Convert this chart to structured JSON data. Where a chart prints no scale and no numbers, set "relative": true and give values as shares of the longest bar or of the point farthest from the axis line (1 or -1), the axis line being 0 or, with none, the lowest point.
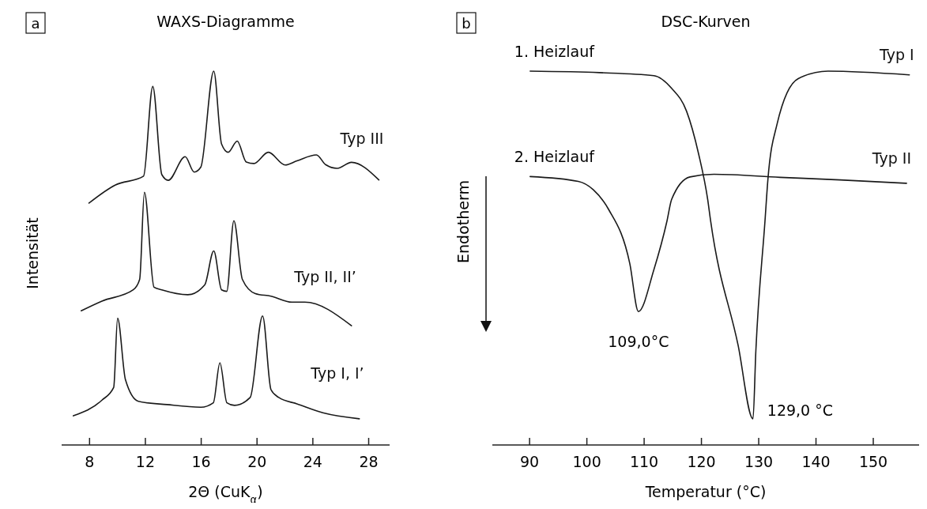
{
  "chart_data": [
    {
      "type": "line",
      "title": "WAXS-Diagramme",
      "xlabel": "2Θ (CuK$_{α}$)",
      "ylabel": "Intensität",
      "relative": true,
      "xlim": [
        6,
        29.5
      ],
      "xticks": [
        8,
        12,
        16,
        20,
        24,
        28
      ],
      "annotations": [
        "a"
      ],
      "series": [
        {
          "name": "Typ III",
          "color": "#1a1a1a",
          "x": [
            7.96,
            9.83,
            11.87,
            12.53,
            13.18,
            13.64,
            14.85,
            15.5,
            15.97,
            16.9,
            17.46,
            17.93,
            18.58,
            19.23,
            19.78,
            20.81,
            22.02,
            22.86,
            24.26,
            24.91,
            25.75,
            26.77,
            28.73
          ],
          "values": [
            0.647,
            0.695,
            0.719,
            0.959,
            0.723,
            0.708,
            0.771,
            0.73,
            0.743,
            1.0,
            0.805,
            0.783,
            0.813,
            0.757,
            0.753,
            0.783,
            0.749,
            0.76,
            0.776,
            0.75,
            0.74,
            0.756,
            0.709
          ]
        },
        {
          "name": "Typ II, II’",
          "color": "#1a1a1a",
          "x": [
            7.4,
            8.89,
            11.13,
            11.59,
            11.93,
            12.62,
            13.18,
            15.04,
            16.25,
            16.9,
            17.46,
            17.83,
            18.34,
            18.95,
            19.88,
            21.0,
            22.49,
            23.42,
            26.77
          ],
          "values": [
            0.359,
            0.385,
            0.415,
            0.443,
            0.676,
            0.422,
            0.415,
            0.402,
            0.428,
            0.519,
            0.415,
            0.411,
            0.6,
            0.443,
            0.405,
            0.398,
            0.382,
            0.382,
            0.319
          ]
        },
        {
          "name": "Typ I, I’",
          "color": "#1a1a1a",
          "x": [
            6.84,
            8.89,
            9.73,
            10.01,
            10.57,
            11.5,
            13.55,
            15.97,
            16.87,
            17.34,
            17.84,
            18.39,
            19.51,
            20.4,
            21.0,
            21.56,
            22.86,
            24.72,
            27.33
          ],
          "values": [
            0.078,
            0.12,
            0.154,
            0.339,
            0.175,
            0.117,
            0.108,
            0.101,
            0.113,
            0.22,
            0.113,
            0.106,
            0.127,
            0.345,
            0.148,
            0.127,
            0.11,
            0.086,
            0.07
          ]
        }
      ]
    },
    {
      "type": "line",
      "title": "DSC-Kurven",
      "xlabel": "Temperatur (°C)",
      "ylabel": "Endotherm",
      "relative": true,
      "xlim": [
        83.5,
        158
      ],
      "xticks": [
        90,
        100,
        110,
        120,
        130,
        140,
        150
      ],
      "annotations": [
        "b",
        {
          "text": "1. Heizlauf",
          "x": 90.1,
          "y": 1.0
        },
        {
          "text": "2. Heizlauf",
          "x": 90.1,
          "y": 0.718
        },
        {
          "text": "109,0°C",
          "x": 109,
          "y": 0.357
        },
        {
          "text": "129,0 °C",
          "x": 129,
          "y": 0.07
        }
      ],
      "series": [
        {
          "name": "Typ I",
          "color": "#1a1a1a",
          "x": [
            90.1,
            102.2,
            111.7,
            114.8,
            117.4,
            119.5,
            121.1,
            121.6,
            126.4,
            129,
            129.5,
            131.1,
            131.6,
            133.2,
            136.9,
            142.1,
            156.3
          ],
          "values": [
            1.0,
            0.996,
            0.988,
            0.954,
            0.893,
            0.779,
            0.656,
            0.6,
            0.267,
            0.07,
            0.251,
            0.6,
            0.709,
            0.858,
            0.98,
            1.0,
            0.99
          ]
        },
        {
          "name": "Typ II",
          "color": "#1a1a1a",
          "x": [
            90.1,
            98.5,
            101.1,
            103.8,
            107.5,
            109,
            111.7,
            114,
            114.8,
            118,
            122.2,
            133.7,
            144.2,
            155.8
          ],
          "values": [
            0.718,
            0.705,
            0.683,
            0.63,
            0.485,
            0.357,
            0.469,
            0.6,
            0.657,
            0.717,
            0.724,
            0.716,
            0.709,
            0.7
          ]
        }
      ]
    }
  ]
}
